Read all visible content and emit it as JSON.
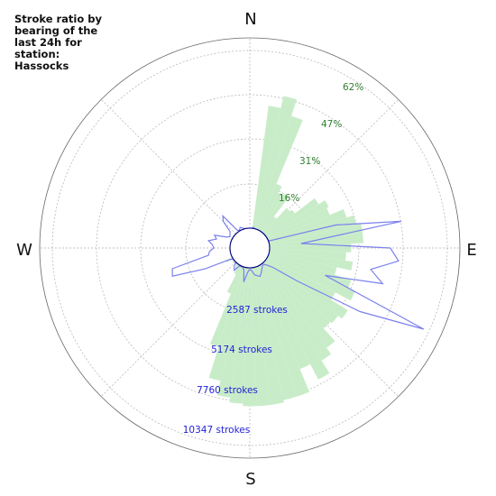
{
  "chart_data": {
    "type": "polar",
    "title_lines": [
      "Stroke ratio by",
      "bearing of the",
      "last 24h for",
      "station:",
      "Hassocks"
    ],
    "directions": [
      "N",
      "E",
      "S",
      "W"
    ],
    "ratio_labels": [
      "16%",
      "31%",
      "47%",
      "62%"
    ],
    "count_labels": [
      "2587 strokes",
      "5174 strokes",
      "7760 strokes",
      "10347 strokes"
    ],
    "ratio_axis_max": 77,
    "count_axis_max": 12934,
    "colors": {
      "ratio_fill": "#c8ecc8",
      "ratio_label": "#2f7f2f",
      "count_line": "#7b80ee",
      "count_label": "#1f1fd6",
      "grid": "#b0b0b0",
      "center_ring": "#000080"
    },
    "series": [
      {
        "kind": "ratio_bars",
        "bearing_step_deg": 5,
        "bearings_deg": [
          0,
          5,
          10,
          15,
          20,
          25,
          30,
          35,
          40,
          45,
          50,
          55,
          60,
          65,
          70,
          75,
          80,
          85,
          90,
          95,
          100,
          105,
          110,
          115,
          120,
          125,
          130,
          135,
          140,
          145,
          150,
          155,
          160,
          165,
          170,
          175,
          180,
          185,
          190,
          195,
          200,
          205,
          210,
          215,
          220,
          225,
          230,
          235,
          240,
          245,
          250,
          255,
          260,
          265,
          270,
          275,
          280,
          285,
          290,
          295,
          300,
          305,
          310,
          315,
          320,
          325,
          330,
          335,
          340,
          345,
          350,
          355
        ],
        "ratio_pct": [
          0,
          0,
          50,
          55,
          48,
          20,
          17,
          18,
          8,
          14,
          15,
          25,
          28,
          27,
          33,
          36,
          38,
          38,
          33,
          31,
          34,
          28,
          35,
          38,
          31,
          39,
          37,
          36,
          43,
          46,
          52,
          45,
          55,
          55,
          56,
          56,
          56,
          55,
          53,
          47,
          34,
          12,
          4,
          2,
          1,
          0,
          1,
          0,
          3,
          0,
          0,
          0,
          0,
          0,
          0,
          0,
          0,
          0,
          0,
          0,
          0,
          0,
          0,
          0,
          0,
          0,
          0,
          0,
          0,
          0,
          0,
          0
        ]
      },
      {
        "kind": "stroke_counts",
        "bearings_deg": [
          0,
          5,
          10,
          15,
          20,
          25,
          30,
          35,
          40,
          45,
          50,
          55,
          60,
          65,
          70,
          75,
          80,
          85,
          90,
          95,
          100,
          105,
          110,
          115,
          120,
          125,
          130,
          135,
          140,
          145,
          150,
          155,
          160,
          165,
          170,
          175,
          180,
          185,
          190,
          195,
          200,
          205,
          210,
          215,
          220,
          225,
          230,
          235,
          240,
          245,
          250,
          255,
          260,
          265,
          270,
          275,
          280,
          285,
          290,
          295,
          300,
          305,
          310,
          315,
          320,
          325,
          330,
          335,
          340,
          345,
          350,
          355
        ],
        "strokes": [
          0,
          0,
          80,
          0,
          0,
          0,
          0,
          0,
          0,
          0,
          0,
          0,
          0,
          0,
          60,
          4700,
          9100,
          2150,
          8200,
          8800,
          7000,
          8000,
          4100,
          11700,
          7300,
          2500,
          700,
          300,
          100,
          150,
          300,
          500,
          700,
          600,
          500,
          200,
          100,
          300,
          1000,
          200,
          50,
          30,
          50,
          500,
          300,
          0,
          0,
          0,
          200,
          2000,
          4250,
          4100,
          1500,
          1400,
          1100,
          1200,
          1500,
          1000,
          1200,
          400,
          200,
          300,
          400,
          1200,
          1500,
          100,
          50,
          200,
          100,
          30,
          0,
          0
        ]
      }
    ]
  }
}
